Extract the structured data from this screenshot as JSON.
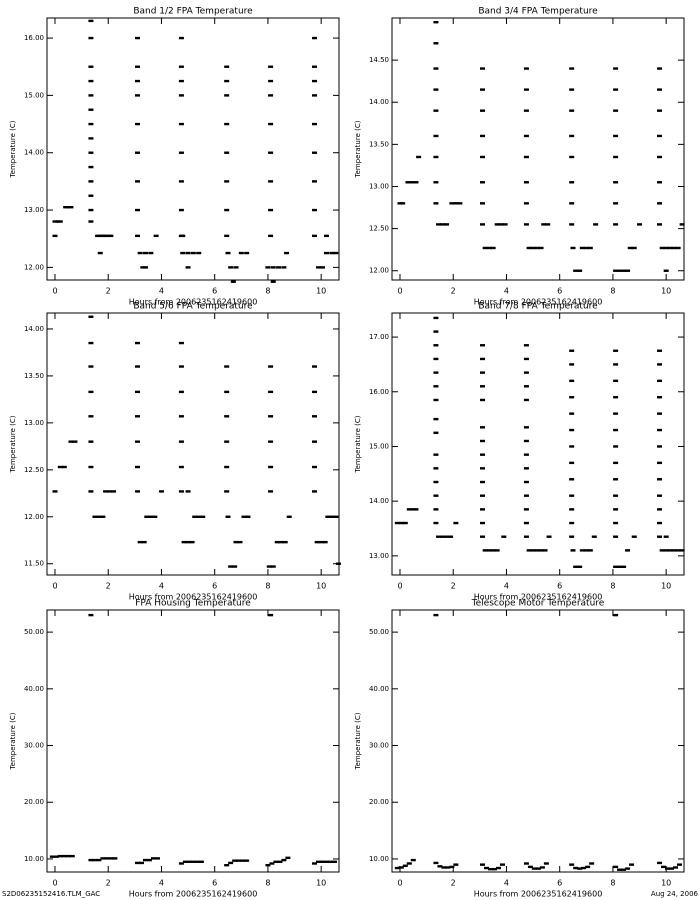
{
  "chart_data": [
    {
      "type": "scatter",
      "title": "Band 1/2 FPA Temperature",
      "x_label": "Hours from 2006235162419600",
      "y_label": "Temperature (C)",
      "color": "#000000",
      "xlim": [
        -0.3,
        10.67
      ],
      "ylim": [
        11.78,
        16.35
      ],
      "xticks": [
        0,
        2,
        4,
        6,
        8,
        10
      ],
      "yticks": [
        {
          "value": 12,
          "label": "12.00"
        },
        {
          "value": 13,
          "label": "13.00"
        },
        {
          "value": 14,
          "label": "14.00"
        },
        {
          "value": 15,
          "label": "15.00"
        },
        {
          "value": 16,
          "label": "16.00"
        }
      ],
      "x": [
        0,
        0.1,
        0.2,
        0,
        0.4,
        0.5,
        0.6,
        1.35,
        1.35,
        1.35,
        1.35,
        1.35,
        1.35,
        1.35,
        1.35,
        1.35,
        1.35,
        1.35,
        1.35,
        1.35,
        1.35,
        1.6,
        1.7,
        1.8,
        1.9,
        2.0,
        2.1,
        1.7,
        3.1,
        3.1,
        3.1,
        3.1,
        3.1,
        3.1,
        3.1,
        3.1,
        3.1,
        3.2,
        3.4,
        3.6,
        3.3,
        3.4,
        3.8,
        4.75,
        4.75,
        4.75,
        4.75,
        4.75,
        4.75,
        4.75,
        4.75,
        4.75,
        4.8,
        5.0,
        5.2,
        5.4,
        5.0,
        4.8,
        6.45,
        6.45,
        6.45,
        6.45,
        6.45,
        6.45,
        6.45,
        6.45,
        6.5,
        6.6,
        6.8,
        6.7,
        7.0,
        7.2,
        8.1,
        8.1,
        8.1,
        8.1,
        8.1,
        8.1,
        8.1,
        8.1,
        8.0,
        8.2,
        8.4,
        8.6,
        8.2,
        8.7,
        9.75,
        9.75,
        9.75,
        9.75,
        9.75,
        9.75,
        9.75,
        9.75,
        9.75,
        9.9,
        10.05,
        10.2,
        10.4,
        10.55,
        10.2
      ],
      "values": [
        12.8,
        12.8,
        12.8,
        12.55,
        13.05,
        13.05,
        13.05,
        16.3,
        16.0,
        15.5,
        15.25,
        15.0,
        14.75,
        14.5,
        14.25,
        14.0,
        13.75,
        13.5,
        13.25,
        13.0,
        12.8,
        12.55,
        12.55,
        12.55,
        12.55,
        12.55,
        12.55,
        12.25,
        16.0,
        15.5,
        15.25,
        15.0,
        14.5,
        14.0,
        13.5,
        13.0,
        12.55,
        12.25,
        12.25,
        12.25,
        12.0,
        12.0,
        12.55,
        16.0,
        15.5,
        15.25,
        15.0,
        14.5,
        14.0,
        13.5,
        13.0,
        12.55,
        12.25,
        12.25,
        12.25,
        12.25,
        12.0,
        12.55,
        15.5,
        15.25,
        15.0,
        14.5,
        14.0,
        13.5,
        13.0,
        12.55,
        12.25,
        12.0,
        12.0,
        11.75,
        12.25,
        12.25,
        15.5,
        15.25,
        15.0,
        14.5,
        14.0,
        13.5,
        13.0,
        12.55,
        12.0,
        12.0,
        12.0,
        12.0,
        11.75,
        12.25,
        16.0,
        15.5,
        15.25,
        15.0,
        14.5,
        14.0,
        13.5,
        13.0,
        12.55,
        12.0,
        12.0,
        12.25,
        12.25,
        12.25,
        12.55
      ]
    },
    {
      "type": "scatter",
      "title": "Band 3/4 FPA Temperature",
      "x_label": "Hours from 2006235162419600",
      "y_label": "Temperature (C)",
      "color": "#000000",
      "xlim": [
        -0.3,
        10.67
      ],
      "ylim": [
        11.89,
        15.0
      ],
      "xticks": [
        0,
        2,
        4,
        6,
        8,
        10
      ],
      "yticks": [
        {
          "value": 12,
          "label": "12.00"
        },
        {
          "value": 12.5,
          "label": "12.50"
        },
        {
          "value": 13,
          "label": "13.00"
        },
        {
          "value": 13.5,
          "label": "13.50"
        },
        {
          "value": 14,
          "label": "14.00"
        },
        {
          "value": 14.5,
          "label": "14.50"
        }
      ],
      "x": [
        0,
        0.1,
        0.3,
        0.45,
        0.6,
        0.7,
        1.35,
        1.35,
        1.35,
        1.35,
        1.35,
        1.35,
        1.35,
        1.35,
        1.35,
        1.45,
        1.6,
        1.75,
        1.95,
        2.1,
        2.25,
        3.1,
        3.1,
        3.1,
        3.1,
        3.1,
        3.1,
        3.1,
        3.1,
        3.2,
        3.35,
        3.5,
        3.65,
        3.8,
        3.95,
        4.75,
        4.75,
        4.75,
        4.75,
        4.75,
        4.75,
        4.75,
        4.75,
        4.85,
        5.0,
        5.15,
        5.3,
        5.4,
        5.55,
        6.45,
        6.45,
        6.45,
        6.45,
        6.45,
        6.45,
        6.45,
        6.45,
        6.5,
        6.6,
        6.75,
        6.85,
        7.0,
        7.15,
        7.35,
        8.1,
        8.1,
        8.1,
        8.1,
        8.1,
        8.1,
        8.1,
        8.1,
        8.1,
        8.25,
        8.4,
        8.55,
        8.65,
        8.8,
        9.0,
        9.75,
        9.75,
        9.75,
        9.75,
        9.75,
        9.75,
        9.75,
        9.75,
        9.85,
        10.0,
        10.15,
        10.3,
        10.45,
        10.0,
        10.6
      ],
      "values": [
        12.8,
        12.8,
        13.05,
        13.05,
        13.05,
        13.35,
        14.95,
        14.7,
        14.4,
        14.15,
        13.9,
        13.6,
        13.35,
        13.05,
        12.8,
        12.55,
        12.55,
        12.55,
        12.8,
        12.8,
        12.8,
        14.4,
        14.15,
        13.9,
        13.6,
        13.35,
        13.05,
        12.8,
        12.55,
        12.27,
        12.27,
        12.27,
        12.55,
        12.55,
        12.55,
        14.4,
        14.15,
        13.9,
        13.6,
        13.35,
        13.05,
        12.8,
        12.55,
        12.27,
        12.27,
        12.27,
        12.27,
        12.55,
        12.55,
        14.4,
        14.15,
        13.9,
        13.6,
        13.35,
        13.05,
        12.8,
        12.55,
        12.27,
        12.0,
        12.0,
        12.27,
        12.27,
        12.27,
        12.55,
        14.4,
        14.15,
        13.9,
        13.6,
        13.35,
        13.05,
        12.8,
        12.55,
        12.0,
        12.0,
        12.0,
        12.0,
        12.27,
        12.27,
        12.55,
        14.4,
        14.15,
        13.9,
        13.6,
        13.35,
        13.05,
        12.8,
        12.55,
        12.27,
        12.27,
        12.27,
        12.27,
        12.27,
        12.0,
        12.55
      ]
    },
    {
      "type": "scatter",
      "title": "Band 5/6 FPA Temperature",
      "x_label": "Hours from 2006235162419600",
      "y_label": "Temperature (C)",
      "color": "#000000",
      "xlim": [
        -0.3,
        10.67
      ],
      "ylim": [
        11.38,
        14.17
      ],
      "xticks": [
        0,
        2,
        4,
        6,
        8,
        10
      ],
      "yticks": [
        {
          "value": 11.5,
          "label": "11.50"
        },
        {
          "value": 12,
          "label": "12.00"
        },
        {
          "value": 12.5,
          "label": "12.50"
        },
        {
          "value": 13,
          "label": "13.00"
        },
        {
          "value": 13.5,
          "label": "13.50"
        },
        {
          "value": 14,
          "label": "14.00"
        }
      ],
      "x": [
        0,
        0.2,
        0.35,
        0.6,
        0.75,
        1.35,
        1.35,
        1.35,
        1.35,
        1.35,
        1.35,
        1.35,
        1.35,
        1.5,
        1.65,
        1.8,
        1.9,
        2.05,
        2.2,
        3.1,
        3.1,
        3.1,
        3.1,
        3.1,
        3.1,
        3.1,
        3.2,
        3.35,
        3.45,
        3.6,
        3.75,
        4.0,
        4.75,
        4.75,
        4.75,
        4.75,
        4.75,
        4.75,
        4.75,
        4.85,
        5.0,
        5.15,
        5.25,
        5.4,
        5.55,
        5.0,
        6.45,
        6.45,
        6.45,
        6.45,
        6.45,
        6.45,
        6.5,
        6.6,
        6.75,
        6.8,
        6.95,
        7.1,
        7.25,
        8.1,
        8.1,
        8.1,
        8.1,
        8.1,
        8.1,
        8.05,
        8.2,
        8.35,
        8.5,
        8.65,
        8.8,
        9.75,
        9.75,
        9.75,
        9.75,
        9.75,
        9.75,
        9.85,
        10.0,
        10.15,
        10.25,
        10.4,
        10.55,
        10.65
      ],
      "values": [
        12.27,
        12.53,
        12.53,
        12.8,
        12.8,
        14.13,
        13.85,
        13.6,
        13.33,
        13.07,
        12.8,
        12.53,
        12.27,
        12.0,
        12.0,
        12.0,
        12.27,
        12.27,
        12.27,
        13.85,
        13.6,
        13.33,
        13.07,
        12.8,
        12.53,
        12.27,
        11.73,
        11.73,
        12.0,
        12.0,
        12.0,
        12.27,
        13.85,
        13.6,
        13.33,
        13.07,
        12.8,
        12.53,
        12.27,
        11.73,
        11.73,
        11.73,
        12.0,
        12.0,
        12.0,
        12.27,
        13.6,
        13.33,
        13.07,
        12.8,
        12.53,
        12.27,
        12.0,
        11.47,
        11.47,
        11.73,
        11.73,
        12.0,
        12.0,
        13.6,
        13.33,
        13.07,
        12.8,
        12.53,
        12.27,
        11.47,
        11.47,
        11.73,
        11.73,
        11.73,
        12.0,
        13.6,
        13.33,
        13.07,
        12.8,
        12.53,
        12.27,
        11.73,
        11.73,
        11.73,
        12.0,
        12.0,
        12.0,
        11.5
      ]
    },
    {
      "type": "scatter",
      "title": "Band 7/8 FPA Temperature",
      "x_label": "Hours from 2006235162419600",
      "y_label": "Temperature (C)",
      "color": "#000000",
      "xlim": [
        -0.3,
        10.67
      ],
      "ylim": [
        12.65,
        17.44
      ],
      "xticks": [
        0,
        2,
        4,
        6,
        8,
        10
      ],
      "yticks": [
        {
          "value": 13,
          "label": "13.00"
        },
        {
          "value": 14,
          "label": "14.00"
        },
        {
          "value": 15,
          "label": "15.00"
        },
        {
          "value": 16,
          "label": "16.00"
        },
        {
          "value": 17,
          "label": "17.00"
        }
      ],
      "x": [
        -0.1,
        0.05,
        0.2,
        0.35,
        0.5,
        0.6,
        1.35,
        1.35,
        1.35,
        1.35,
        1.35,
        1.35,
        1.35,
        1.35,
        1.35,
        1.35,
        1.35,
        1.35,
        1.35,
        1.35,
        1.35,
        1.45,
        1.6,
        1.75,
        1.9,
        2.1,
        3.1,
        3.1,
        3.1,
        3.1,
        3.1,
        3.1,
        3.1,
        3.1,
        3.1,
        3.1,
        3.1,
        3.1,
        3.1,
        3.1,
        3.2,
        3.35,
        3.5,
        3.65,
        3.9,
        4.75,
        4.75,
        4.75,
        4.75,
        4.75,
        4.75,
        4.75,
        4.75,
        4.75,
        4.75,
        4.75,
        4.75,
        4.75,
        4.75,
        4.85,
        5.0,
        5.15,
        5.3,
        5.45,
        5.6,
        6.45,
        6.45,
        6.45,
        6.45,
        6.45,
        6.45,
        6.45,
        6.45,
        6.45,
        6.45,
        6.45,
        6.45,
        6.45,
        6.5,
        6.6,
        6.75,
        6.85,
        7.0,
        7.15,
        7.3,
        8.1,
        8.1,
        8.1,
        8.1,
        8.1,
        8.1,
        8.1,
        8.1,
        8.1,
        8.1,
        8.1,
        8.1,
        8.1,
        8.1,
        8.25,
        8.4,
        8.55,
        8.8,
        9.75,
        9.75,
        9.75,
        9.75,
        9.75,
        9.75,
        9.75,
        9.75,
        9.75,
        9.75,
        9.75,
        9.75,
        9.75,
        9.85,
        10.0,
        10.15,
        10.3,
        10.45,
        10.6,
        10.0
      ],
      "values": [
        13.6,
        13.6,
        13.6,
        13.85,
        13.85,
        13.85,
        17.35,
        17.1,
        16.85,
        16.6,
        16.35,
        16.1,
        15.85,
        15.5,
        15.25,
        14.85,
        14.6,
        14.35,
        14.1,
        13.85,
        13.6,
        13.35,
        13.35,
        13.35,
        13.35,
        13.6,
        16.85,
        16.6,
        16.35,
        16.1,
        15.85,
        15.35,
        15.1,
        14.85,
        14.6,
        14.35,
        14.1,
        13.85,
        13.6,
        13.35,
        13.1,
        13.1,
        13.1,
        13.1,
        13.35,
        16.85,
        16.6,
        16.35,
        16.1,
        15.85,
        15.35,
        15.1,
        14.85,
        14.6,
        14.35,
        14.1,
        13.85,
        13.6,
        13.35,
        13.1,
        13.1,
        13.1,
        13.1,
        13.1,
        13.35,
        16.75,
        16.5,
        16.2,
        15.9,
        15.6,
        15.3,
        15.0,
        14.7,
        14.4,
        14.1,
        13.85,
        13.6,
        13.35,
        13.1,
        12.8,
        12.8,
        13.1,
        13.1,
        13.1,
        13.35,
        16.75,
        16.5,
        16.2,
        15.9,
        15.6,
        15.3,
        15.0,
        14.7,
        14.4,
        14.1,
        13.85,
        13.6,
        13.35,
        12.8,
        12.8,
        12.8,
        13.1,
        13.35,
        16.75,
        16.5,
        16.2,
        15.9,
        15.6,
        15.3,
        15.0,
        14.7,
        14.4,
        14.1,
        13.85,
        13.6,
        13.35,
        13.1,
        13.1,
        13.1,
        13.1,
        13.1,
        13.1,
        13.35
      ]
    },
    {
      "type": "scatter",
      "title": "FPA Housing Temperature",
      "x_label": "Hours from 2006235162419600",
      "y_label": "Temperature (C)",
      "color": "#000000",
      "xlim": [
        -0.3,
        10.67
      ],
      "ylim": [
        7.7,
        53.9
      ],
      "xticks": [
        0,
        2,
        4,
        6,
        8,
        10
      ],
      "yticks": [
        {
          "value": 10,
          "label": "10.00"
        },
        {
          "value": 20,
          "label": "20.00"
        },
        {
          "value": 30,
          "label": "30.00"
        },
        {
          "value": 40,
          "label": "40.00"
        },
        {
          "value": 50,
          "label": "50.00"
        }
      ],
      "x": [
        1.35,
        8.1,
        -0.1,
        0.05,
        0.2,
        0.35,
        0.5,
        0.65,
        1.35,
        1.5,
        1.65,
        1.8,
        1.95,
        2.1,
        2.25,
        3.1,
        3.25,
        3.4,
        3.55,
        3.7,
        3.85,
        4.75,
        4.9,
        5.05,
        5.2,
        5.35,
        5.5,
        6.45,
        6.6,
        6.75,
        6.9,
        7.05,
        7.2,
        8.0,
        8.15,
        8.3,
        8.45,
        8.6,
        8.75,
        9.75,
        9.9,
        10.05,
        10.2,
        10.35,
        10.5
      ],
      "values": [
        53,
        53,
        10.4,
        10.4,
        10.5,
        10.5,
        10.5,
        10.5,
        9.8,
        9.8,
        9.8,
        10.1,
        10.1,
        10.1,
        10.1,
        9.3,
        9.3,
        9.8,
        9.8,
        10.1,
        10.1,
        9.2,
        9.5,
        9.5,
        9.5,
        9.5,
        9.5,
        8.9,
        9.3,
        9.7,
        9.7,
        9.7,
        9.7,
        8.9,
        9.2,
        9.5,
        9.5,
        9.8,
        10.2,
        9.2,
        9.5,
        9.5,
        9.5,
        9.5,
        9.5
      ]
    },
    {
      "type": "scatter",
      "title": "Telescope Motor Temperature",
      "x_label": "Hours from 2006235162419600",
      "y_label": "Temperature (C)",
      "color": "#000000",
      "xlim": [
        -0.3,
        10.67
      ],
      "ylim": [
        7.7,
        53.9
      ],
      "xticks": [
        0,
        2,
        4,
        6,
        8,
        10
      ],
      "yticks": [
        {
          "value": 10,
          "label": "10.00"
        },
        {
          "value": 20,
          "label": "20.00"
        },
        {
          "value": 30,
          "label": "30.00"
        },
        {
          "value": 40,
          "label": "40.00"
        },
        {
          "value": 50,
          "label": "50.00"
        }
      ],
      "x": [
        1.35,
        8.1,
        -0.1,
        0.05,
        0.2,
        0.35,
        0.5,
        1.35,
        1.5,
        1.65,
        1.8,
        1.95,
        2.1,
        3.1,
        3.25,
        3.4,
        3.55,
        3.7,
        3.85,
        4.75,
        4.9,
        5.05,
        5.2,
        5.35,
        5.5,
        6.45,
        6.6,
        6.75,
        6.9,
        7.05,
        7.2,
        8.1,
        8.25,
        8.4,
        8.55,
        8.7,
        9.75,
        9.9,
        10.05,
        10.2,
        10.35,
        10.5
      ],
      "values": [
        53,
        53,
        8.4,
        8.5,
        8.8,
        9.2,
        9.8,
        9.3,
        8.7,
        8.5,
        8.5,
        8.6,
        9.0,
        9.0,
        8.4,
        8.2,
        8.2,
        8.4,
        9.0,
        9.2,
        8.6,
        8.3,
        8.3,
        8.5,
        9.2,
        9.0,
        8.4,
        8.3,
        8.4,
        8.6,
        9.2,
        8.6,
        8.1,
        8.1,
        8.3,
        9.0,
        9.3,
        8.6,
        8.3,
        8.3,
        8.5,
        9.0
      ]
    }
  ],
  "footer": {
    "left": "S2D06235152416.TLM_GAC",
    "right": "Aug 24, 2006"
  }
}
